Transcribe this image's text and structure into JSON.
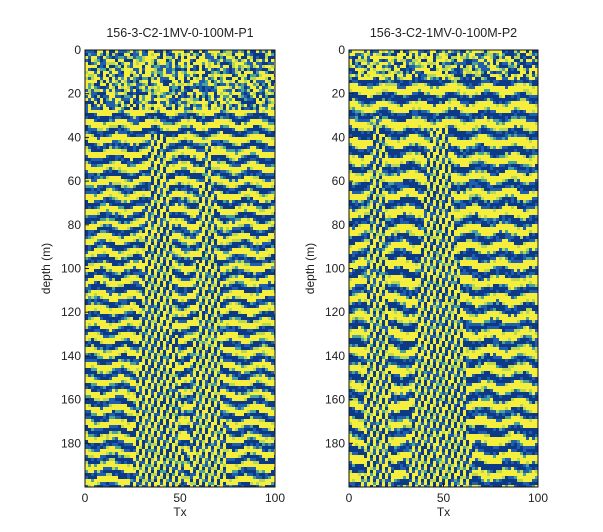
{
  "colors": {
    "low": "#1f5fae",
    "mid_low": "#4aa39b",
    "mid_high": "#b7d655",
    "high": "#f5ee3c",
    "dark_band": "#0c3a86",
    "background": "#ffffff",
    "text": "#222222"
  },
  "chart_data": [
    {
      "type": "heatmap",
      "title": "156-3-C2-1MV-0-100M-P1",
      "xlabel": "Tx",
      "ylabel": "depth (m)",
      "xlim": [
        0,
        100
      ],
      "ylim": [
        200,
        0
      ],
      "x_ticks": [
        "0",
        "50",
        "100"
      ],
      "y_ticks": [
        "0",
        "20",
        "40",
        "60",
        "80",
        "100",
        "120",
        "140",
        "160",
        "180"
      ],
      "x_tick_values": [
        0,
        50,
        100
      ],
      "y_tick_values": [
        0,
        20,
        40,
        60,
        80,
        100,
        120,
        140,
        160,
        180
      ],
      "colormap": "blue-yellow",
      "pattern": {
        "wedges": [
          {
            "center": 38,
            "half_width_top": 4,
            "half_width_bottom": 14,
            "start_depth": 38
          },
          {
            "center": 64,
            "half_width_top": 3,
            "half_width_bottom": 10,
            "start_depth": 42
          }
        ],
        "noise_top_depth": 28,
        "band_period": 6.5,
        "seed": 11
      }
    },
    {
      "type": "heatmap",
      "title": "156-3-C2-1MV-0-100M-P2",
      "xlabel": "Tx",
      "ylabel": "depth (m)",
      "xlim": [
        0,
        100
      ],
      "ylim": [
        200,
        0
      ],
      "x_ticks": [
        "0",
        "50",
        "100"
      ],
      "y_ticks": [
        "0",
        "20",
        "40",
        "60",
        "80",
        "100",
        "120",
        "140",
        "160",
        "180"
      ],
      "x_tick_values": [
        0,
        50,
        100
      ],
      "y_tick_values": [
        0,
        20,
        40,
        60,
        80,
        100,
        120,
        140,
        160,
        180
      ],
      "colormap": "blue-yellow",
      "pattern": {
        "wedges": [
          {
            "center": 15,
            "half_width_top": 3,
            "half_width_bottom": 8,
            "start_depth": 30
          },
          {
            "center": 48,
            "half_width_top": 5,
            "half_width_bottom": 18,
            "start_depth": 35
          }
        ],
        "noise_top_depth": 14,
        "band_period": 8,
        "seed": 29
      }
    }
  ]
}
